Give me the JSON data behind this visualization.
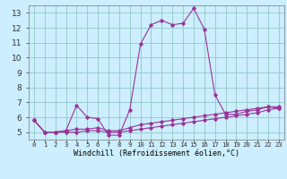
{
  "xlabel": "Windchill (Refroidissement éolien,°C)",
  "background_color": "#cceeff",
  "line_color": "#993399",
  "grid_color": "#99cccc",
  "x_hours": [
    0,
    1,
    2,
    3,
    4,
    5,
    6,
    7,
    8,
    9,
    10,
    11,
    12,
    13,
    14,
    15,
    16,
    17,
    18,
    19,
    20,
    21,
    22,
    23
  ],
  "main_line": [
    5.8,
    5.0,
    5.0,
    5.1,
    6.8,
    6.0,
    5.9,
    4.8,
    4.8,
    6.5,
    10.9,
    12.2,
    12.5,
    12.2,
    12.3,
    13.3,
    11.9,
    7.5,
    6.2,
    6.2,
    6.4,
    6.5,
    6.7,
    6.6
  ],
  "low_line": [
    5.8,
    5.0,
    5.0,
    5.0,
    5.0,
    5.1,
    5.1,
    5.0,
    5.0,
    5.1,
    5.2,
    5.3,
    5.4,
    5.5,
    5.6,
    5.7,
    5.8,
    5.9,
    6.0,
    6.1,
    6.2,
    6.3,
    6.5,
    6.6
  ],
  "high_line": [
    5.8,
    5.0,
    5.0,
    5.1,
    5.2,
    5.2,
    5.3,
    5.1,
    5.1,
    5.3,
    5.5,
    5.6,
    5.7,
    5.8,
    5.9,
    6.0,
    6.1,
    6.2,
    6.3,
    6.4,
    6.5,
    6.6,
    6.7,
    6.7
  ],
  "ylim": [
    4.5,
    13.5
  ],
  "yticks": [
    5,
    6,
    7,
    8,
    9,
    10,
    11,
    12,
    13
  ],
  "xlim": [
    -0.5,
    23.5
  ],
  "xlabel_fontsize": 6.0,
  "ytick_fontsize": 6.5,
  "xtick_fontsize": 5.2
}
